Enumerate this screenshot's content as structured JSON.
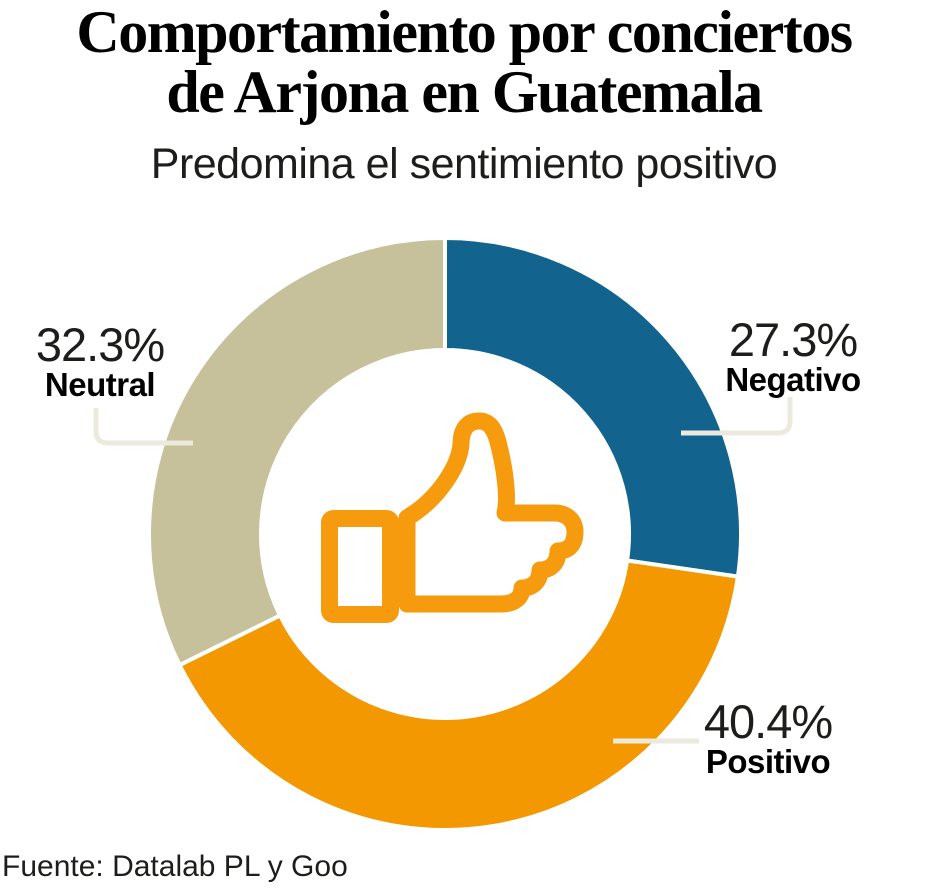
{
  "header": {
    "title_lines": [
      "Comportamiento por conciertos",
      "de Arjona en Guatemala"
    ],
    "subtitle": "Predomina el sentimiento positivo"
  },
  "footer": {
    "source": "Fuente: Datalab PL y Goo"
  },
  "chart_data": {
    "type": "pie",
    "subtype": "donut",
    "title": "Comportamiento por conciertos de Arjona en Guatemala",
    "subtitle": "Predomina el sentimiento positivo",
    "source": "Fuente: Datalab PL y Goo",
    "units": "%",
    "start_position": "top",
    "direction": "clockwise",
    "legend_position": "callouts",
    "center_icon": "thumbs-up-icon",
    "center_icon_color": "#F59B0D",
    "separator_color": "#FFFFFF",
    "callout_line_color": "#ECEADC",
    "categories": [
      "Negativo",
      "Positivo",
      "Neutral"
    ],
    "values": [
      27.3,
      40.4,
      32.3
    ],
    "slices": [
      {
        "label": "Negativo",
        "value": 27.3,
        "display": "27.3%",
        "color": "#12648F"
      },
      {
        "label": "Positivo",
        "value": 40.4,
        "display": "40.4%",
        "color": "#F39800"
      },
      {
        "label": "Neutral",
        "value": 32.3,
        "display": "32.3%",
        "color": "#C6C09B"
      }
    ]
  }
}
